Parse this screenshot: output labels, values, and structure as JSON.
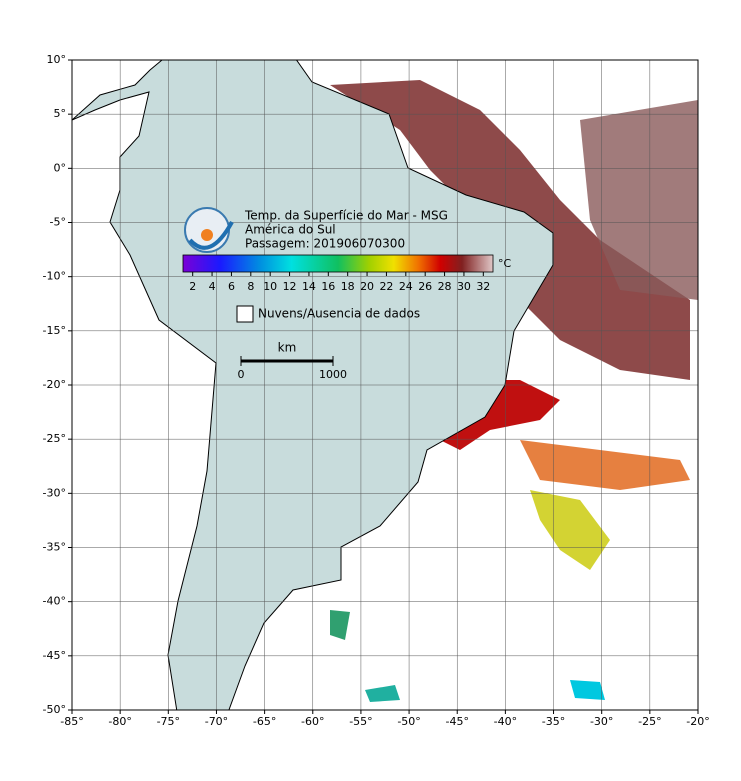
{
  "map": {
    "title": "Temp. da Superfície do Mar - MSG",
    "region": "América do Sul",
    "pass": "Passagem: 201906070300",
    "lonlim": [
      -85,
      -20
    ],
    "latlim": [
      -50,
      10
    ],
    "lonticks": [
      {
        "value": -85,
        "label": "-85°"
      },
      {
        "value": -80,
        "label": "-80°"
      },
      {
        "value": -75,
        "label": "-75°"
      },
      {
        "value": -70,
        "label": "-70°"
      },
      {
        "value": -65,
        "label": "-65°"
      },
      {
        "value": -60,
        "label": "-60°"
      },
      {
        "value": -55,
        "label": "-55°"
      },
      {
        "value": -50,
        "label": "-50°"
      },
      {
        "value": -45,
        "label": "-45°"
      },
      {
        "value": -40,
        "label": "-40°"
      },
      {
        "value": -35,
        "label": "-35°"
      },
      {
        "value": -30,
        "label": "-30°"
      },
      {
        "value": -25,
        "label": "-25°"
      },
      {
        "value": -20,
        "label": "-20°"
      }
    ],
    "latticks": [
      {
        "value": 10,
        "label": "10°"
      },
      {
        "value": 5,
        "label": "5°"
      },
      {
        "value": 0,
        "label": "0°"
      },
      {
        "value": -5,
        "label": "-5°"
      },
      {
        "value": -10,
        "label": "-10°"
      },
      {
        "value": -15,
        "label": "-15°"
      },
      {
        "value": -20,
        "label": "-20°"
      },
      {
        "value": -25,
        "label": "-25°"
      },
      {
        "value": -30,
        "label": "-30°"
      },
      {
        "value": -35,
        "label": "-35°"
      },
      {
        "value": -40,
        "label": "-40°"
      },
      {
        "value": -45,
        "label": "-45°"
      },
      {
        "value": -50,
        "label": "-50°"
      }
    ],
    "colorbar": {
      "unit": "°C",
      "range": [
        1,
        33
      ],
      "ticks": [
        2,
        4,
        6,
        8,
        10,
        12,
        14,
        16,
        18,
        20,
        22,
        24,
        26,
        28,
        30,
        32
      ]
    },
    "legend": "Nuvens/Ausencia de dados",
    "scalebar": {
      "unit": "km",
      "ticks": [
        0,
        1000
      ]
    }
  }
}
